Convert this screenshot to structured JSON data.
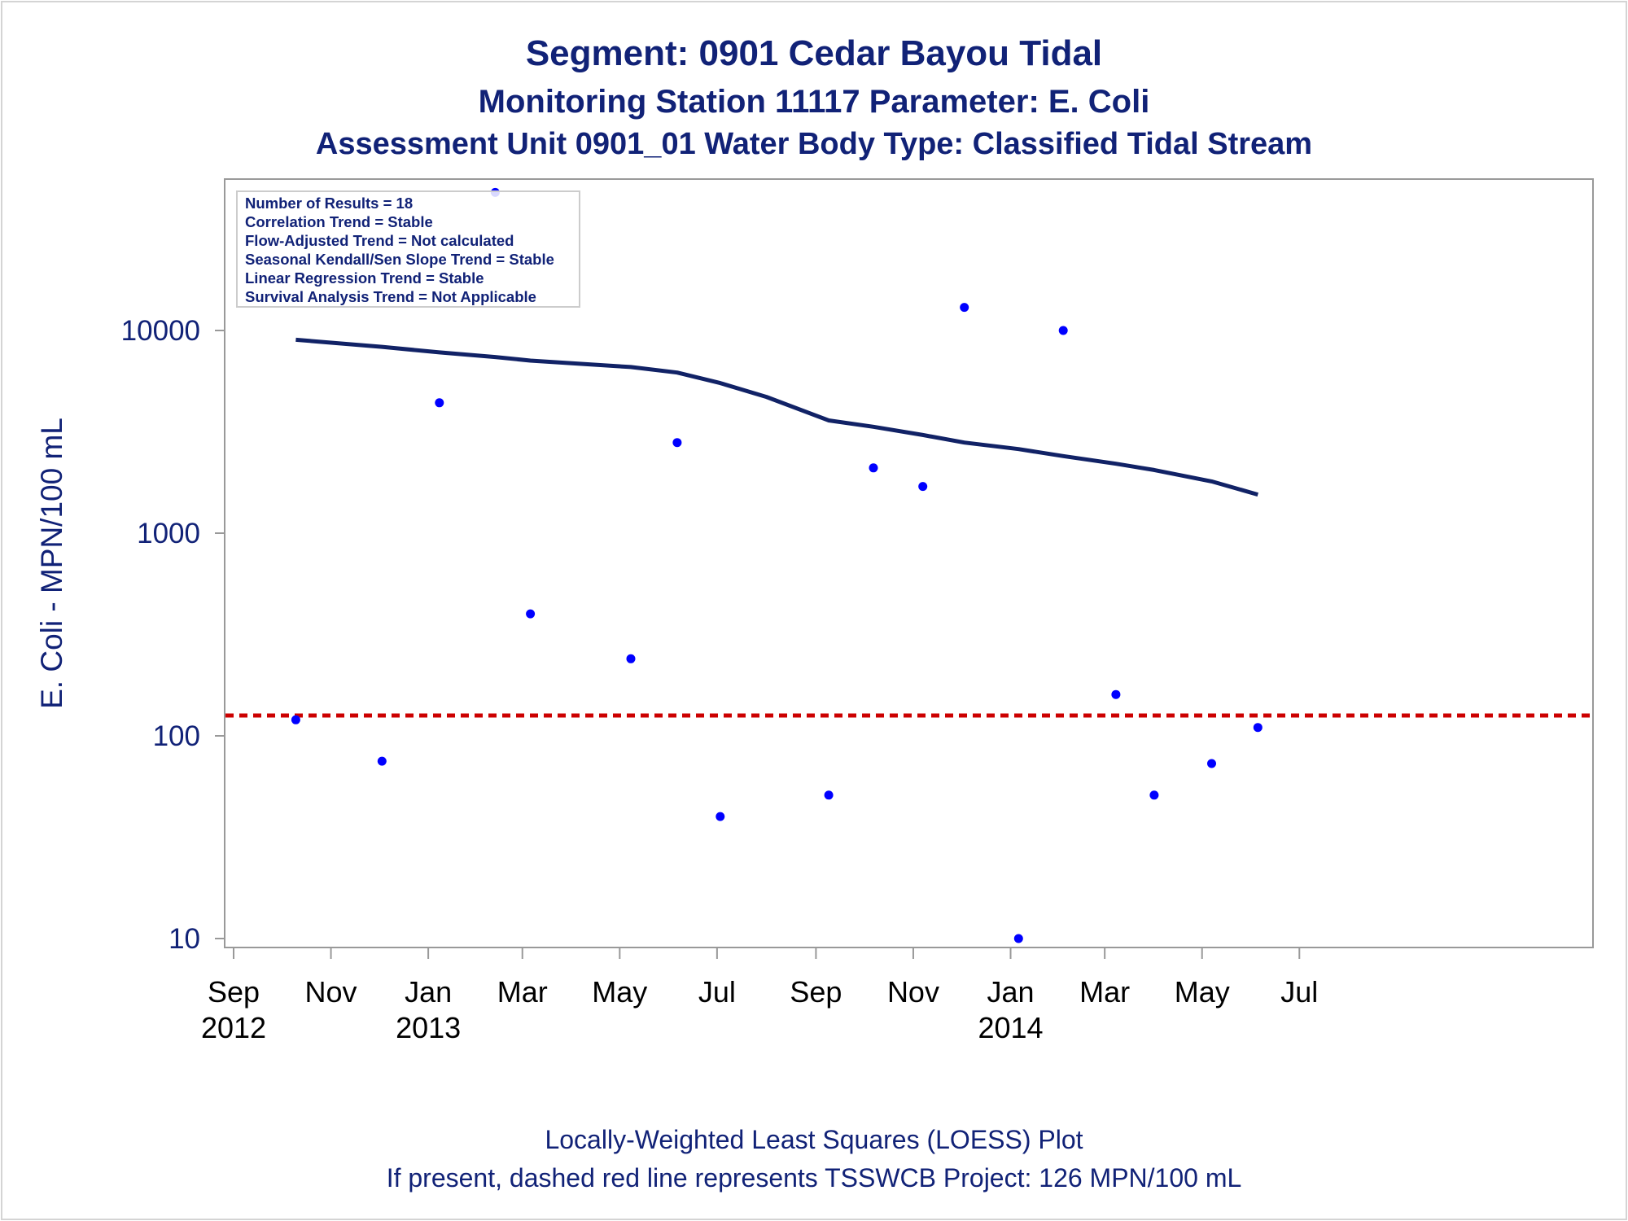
{
  "titles": {
    "title": "Segment: 0901  Cedar Bayou Tidal",
    "subtitle1": "Monitoring Station 11117 Parameter: E. Coli",
    "subtitle2": "Assessment Unit 0901_01   Water Body Type: Classified Tidal Stream"
  },
  "footnotes": {
    "line1": "Locally-Weighted Least Squares (LOESS) Plot",
    "line2": "If present, dashed red line represents TSSWCB Project: 126 MPN/100 mL"
  },
  "inset": {
    "lines": [
      "Number of Results = 18",
      "Correlation Trend = Stable",
      "Flow-Adjusted Trend = Not calculated",
      "Seasonal Kendall/Sen Slope Trend = Stable",
      "Linear Regression Trend = Stable",
      "Survival Analysis Trend = Not Applicable"
    ]
  },
  "chart_data": {
    "type": "scatter",
    "ylabel": "E. Coli - MPN/100 mL",
    "yscale": "log",
    "ylim": [
      8,
      52000
    ],
    "yticks": [
      {
        "value": 10,
        "label": "10"
      },
      {
        "value": 100,
        "label": "100"
      },
      {
        "value": 1000,
        "label": "1000"
      },
      {
        "value": 10000,
        "label": "10000"
      }
    ],
    "xlim": [
      "2012-08-30",
      "2014-07-20"
    ],
    "xticks": [
      {
        "date": "2012-09-01",
        "label": "Sep",
        "year": "2012"
      },
      {
        "date": "2012-11-01",
        "label": "Nov",
        "year": ""
      },
      {
        "date": "2013-01-01",
        "label": "Jan",
        "year": "2013"
      },
      {
        "date": "2013-03-01",
        "label": "Mar",
        "year": ""
      },
      {
        "date": "2013-05-01",
        "label": "May",
        "year": ""
      },
      {
        "date": "2013-07-01",
        "label": "Jul",
        "year": ""
      },
      {
        "date": "2013-09-01",
        "label": "Sep",
        "year": ""
      },
      {
        "date": "2013-11-01",
        "label": "Nov",
        "year": ""
      },
      {
        "date": "2014-01-01",
        "label": "Jan",
        "year": "2014"
      },
      {
        "date": "2014-03-01",
        "label": "Mar",
        "year": ""
      },
      {
        "date": "2014-05-01",
        "label": "May",
        "year": ""
      },
      {
        "date": "2014-07-01",
        "label": "Jul",
        "year": ""
      }
    ],
    "points": [
      {
        "date": "2012-10-10",
        "value": 120
      },
      {
        "date": "2012-12-03",
        "value": 75
      },
      {
        "date": "2013-01-08",
        "value": 4400
      },
      {
        "date": "2013-02-12",
        "value": 48000
      },
      {
        "date": "2013-03-06",
        "value": 400
      },
      {
        "date": "2013-05-08",
        "value": 240
      },
      {
        "date": "2013-06-06",
        "value": 2800
      },
      {
        "date": "2013-07-03",
        "value": 40
      },
      {
        "date": "2013-09-09",
        "value": 51
      },
      {
        "date": "2013-10-07",
        "value": 2100
      },
      {
        "date": "2013-11-07",
        "value": 1700
      },
      {
        "date": "2013-12-03",
        "value": 13000
      },
      {
        "date": "2014-01-06",
        "value": 10
      },
      {
        "date": "2014-02-03",
        "value": 10000
      },
      {
        "date": "2014-03-08",
        "value": 160
      },
      {
        "date": "2014-04-01",
        "value": 51
      },
      {
        "date": "2014-05-07",
        "value": 73
      },
      {
        "date": "2014-06-05",
        "value": 110
      }
    ],
    "loess": [
      {
        "date": "2012-10-10",
        "value": 9000
      },
      {
        "date": "2012-12-03",
        "value": 8300
      },
      {
        "date": "2013-01-08",
        "value": 7800
      },
      {
        "date": "2013-02-12",
        "value": 7400
      },
      {
        "date": "2013-03-06",
        "value": 7100
      },
      {
        "date": "2013-05-08",
        "value": 6600
      },
      {
        "date": "2013-06-06",
        "value": 6200
      },
      {
        "date": "2013-07-03",
        "value": 5500
      },
      {
        "date": "2013-08-01",
        "value": 4700
      },
      {
        "date": "2013-09-09",
        "value": 3600
      },
      {
        "date": "2013-10-07",
        "value": 3350
      },
      {
        "date": "2013-11-07",
        "value": 3050
      },
      {
        "date": "2013-12-03",
        "value": 2800
      },
      {
        "date": "2014-01-06",
        "value": 2600
      },
      {
        "date": "2014-02-03",
        "value": 2400
      },
      {
        "date": "2014-03-08",
        "value": 2200
      },
      {
        "date": "2014-04-01",
        "value": 2050
      },
      {
        "date": "2014-05-07",
        "value": 1800
      },
      {
        "date": "2014-06-05",
        "value": 1550
      }
    ],
    "reference_line": {
      "value": 126
    },
    "colors": {
      "points": "#0000ff",
      "loess": "#112266",
      "reference": "#cc0000",
      "text": "#112277",
      "axis": "#999999"
    },
    "grid": false,
    "legend": "none"
  }
}
